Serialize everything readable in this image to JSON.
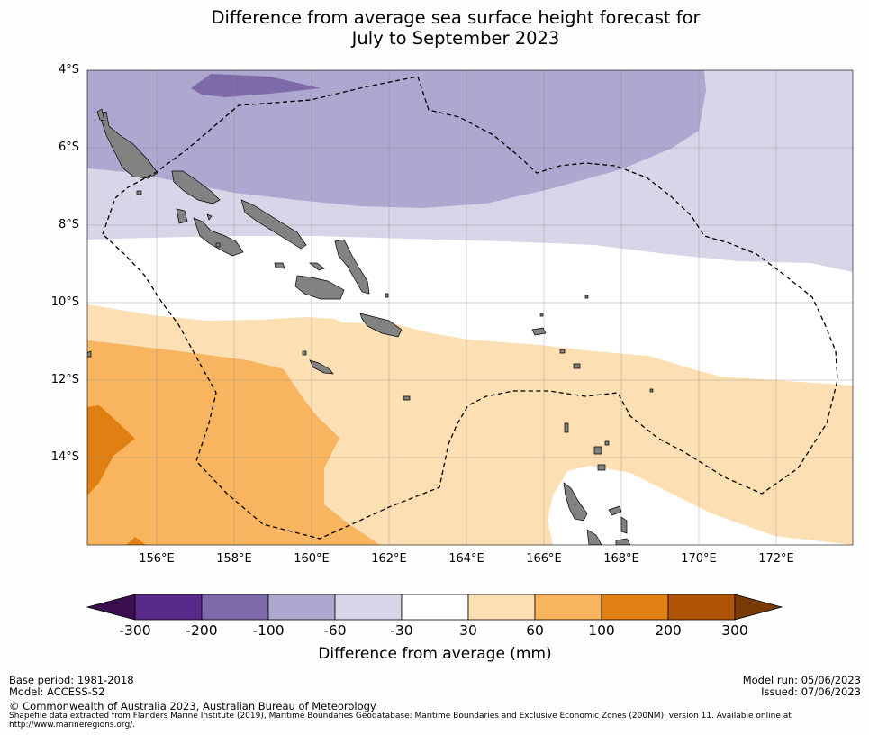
{
  "title_lines": [
    "Difference from average sea surface height forecast for",
    "July to September 2023"
  ],
  "map": {
    "lat_labels": [
      "4°S",
      "6°S",
      "8°S",
      "10°S",
      "12°S",
      "14°S"
    ],
    "lon_labels": [
      "156°E",
      "158°E",
      "160°E",
      "162°E",
      "164°E",
      "166°E",
      "168°E",
      "170°E",
      "172°E"
    ],
    "lat_range": [
      -16.3,
      -4.0
    ],
    "lon_range": [
      154.2,
      174.0
    ],
    "eez_boundary": "dashed",
    "land_color": "#828282"
  },
  "colorbar": {
    "ticks": [
      "-300",
      "-200",
      "-100",
      "-60",
      "-30",
      "30",
      "60",
      "100",
      "200",
      "300"
    ],
    "label": "Difference from average (mm)",
    "colors": [
      "#3b0f4f",
      "#5a2a8a",
      "#7d6aa8",
      "#aea7cf",
      "#d7d6e9",
      "#ffffff",
      "#fcdfb2",
      "#f8b45e",
      "#e08012",
      "#b05406",
      "#7a3a06"
    ]
  },
  "footer": {
    "base_period": "Base period: 1981-2018",
    "model": "Model: ACCESS-S2",
    "copyright": "© Commonwealth of Australia 2023, Australian Bureau of Meteorology",
    "shapefile": "Shapefile data extracted from Flanders Marine Institute (2019), Maritime Boundaries Geodatabase: Maritime Boundaries and Exclusive Economic Zones (200NM), version 11. Available online at",
    "url": "http://www.marineregions.org/.",
    "model_run": "Model run: 05/06/2023",
    "issued": "Issued: 07/06/2023"
  }
}
